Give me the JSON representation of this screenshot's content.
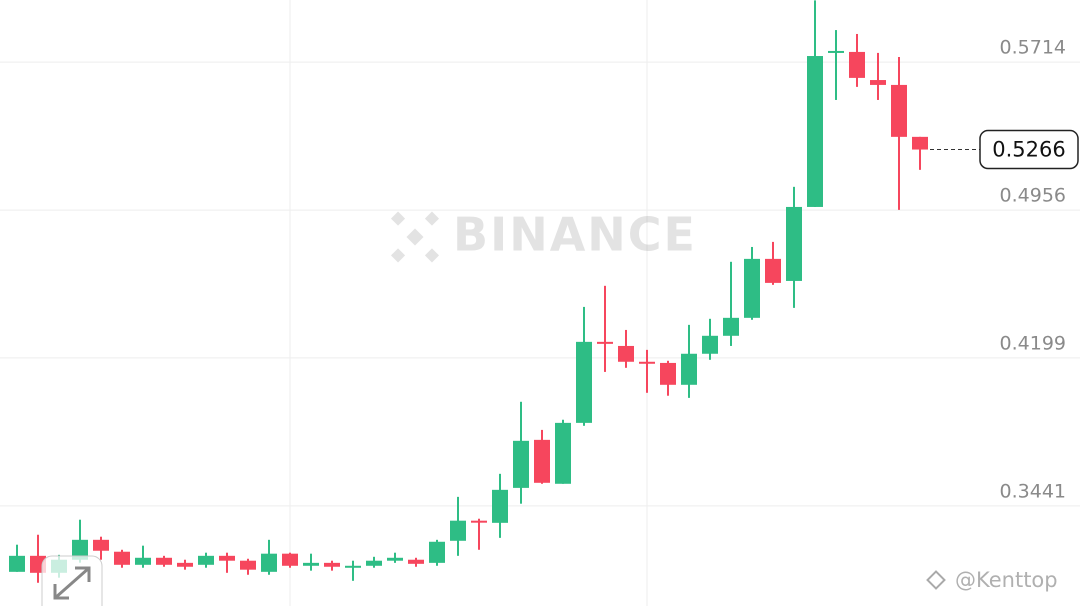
{
  "chart_data": {
    "type": "candlestick",
    "watermark": "BINANCE",
    "credit": "@Kenttop",
    "ylim": [
      0.2928,
      0.6032
    ],
    "yticks": [
      0.5714,
      0.4956,
      0.4199,
      0.3441
    ],
    "last_price": 0.5266,
    "up_color": "#2ebd85",
    "down_color": "#f6465d",
    "open": [
      0.3103,
      0.3185,
      0.3098,
      0.3165,
      0.3267,
      0.3206,
      0.3139,
      0.3175,
      0.3149,
      0.3139,
      0.3185,
      0.316,
      0.3103,
      0.3196,
      0.3134,
      0.3149,
      0.3129,
      0.3134,
      0.316,
      0.3165,
      0.3149,
      0.3262,
      0.3365,
      0.3354,
      0.3533,
      0.3779,
      0.3554,
      0.3866,
      0.4281,
      0.426,
      0.4179,
      0.4173,
      0.4061,
      0.422,
      0.4312,
      0.4404,
      0.4706,
      0.4593,
      0.4972,
      0.5761,
      0.5766,
      0.5622,
      0.5597,
      0.5331
    ],
    "high": [
      0.3242,
      0.3293,
      0.319,
      0.337,
      0.3283,
      0.3216,
      0.3237,
      0.3185,
      0.3165,
      0.3201,
      0.3201,
      0.317,
      0.3267,
      0.3201,
      0.3196,
      0.316,
      0.316,
      0.318,
      0.3201,
      0.3175,
      0.3267,
      0.3487,
      0.3375,
      0.3605,
      0.3974,
      0.383,
      0.3882,
      0.446,
      0.4568,
      0.4342,
      0.424,
      0.4184,
      0.4368,
      0.4399,
      0.4691,
      0.4767,
      0.4793,
      0.5075,
      0.603,
      0.5878,
      0.5858,
      0.5761,
      0.574,
      0.5331
    ],
    "low": [
      0.3103,
      0.3047,
      0.3073,
      0.315,
      0.3165,
      0.3124,
      0.3124,
      0.3129,
      0.3114,
      0.3124,
      0.3098,
      0.3088,
      0.3088,
      0.3124,
      0.3109,
      0.3109,
      0.3057,
      0.3124,
      0.3149,
      0.3129,
      0.3134,
      0.3185,
      0.3216,
      0.3277,
      0.3452,
      0.3554,
      0.3554,
      0.3851,
      0.4127,
      0.4148,
      0.402,
      0.4005,
      0.3994,
      0.4189,
      0.426,
      0.4394,
      0.4573,
      0.4455,
      0.4972,
      0.552,
      0.5587,
      0.552,
      0.4957,
      0.5162
    ],
    "close": [
      0.3185,
      0.3098,
      0.3165,
      0.3267,
      0.3211,
      0.3139,
      0.3175,
      0.3139,
      0.3129,
      0.3185,
      0.316,
      0.3114,
      0.3196,
      0.3134,
      0.3149,
      0.3129,
      0.3134,
      0.316,
      0.3175,
      0.3144,
      0.3257,
      0.3365,
      0.3359,
      0.3523,
      0.3774,
      0.3559,
      0.3866,
      0.4281,
      0.4271,
      0.4179,
      0.4173,
      0.4061,
      0.422,
      0.4312,
      0.4404,
      0.4706,
      0.4583,
      0.4972,
      0.5745,
      0.5771,
      0.5633,
      0.5597,
      0.5331,
      0.5266
    ]
  }
}
